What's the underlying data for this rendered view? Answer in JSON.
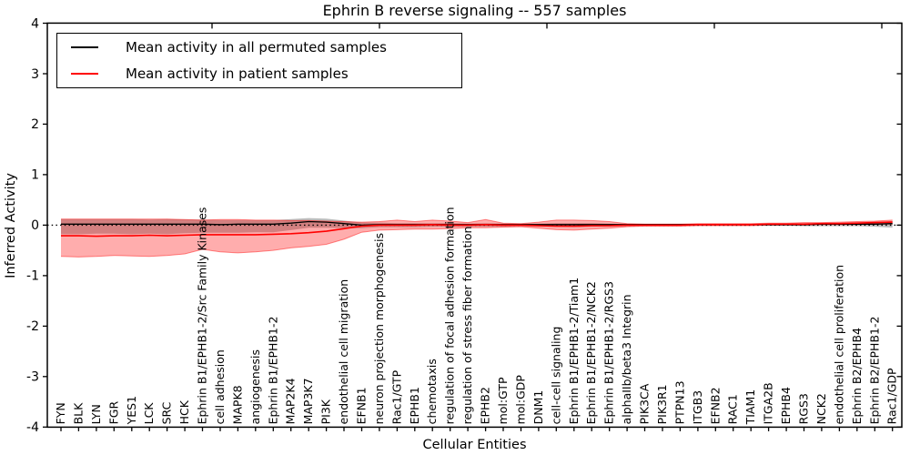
{
  "title": "Ephrin B reverse signaling -- 557 samples",
  "legend": {
    "entries": [
      {
        "label": "Mean activity in all permuted samples",
        "color": "#000000"
      },
      {
        "label": "Mean activity in patient samples",
        "color": "#ff0000"
      }
    ]
  },
  "colors": {
    "permuted_line": "#000000",
    "permuted_band": "rgba(0,0,0,0.26)",
    "patient_line": "#ff0000",
    "patient_band": "rgba(255,0,0,0.32)",
    "zero_line": "#000000"
  },
  "chart_data": {
    "type": "line",
    "title": "Ephrin B reverse signaling -- 557 samples",
    "xlabel": "Cellular Entities",
    "ylabel": "Inferred Activity",
    "ylim": [
      -4,
      4
    ],
    "yticks": [
      -4,
      -3,
      -2,
      -1,
      0,
      1,
      2,
      3,
      4
    ],
    "grid": false,
    "legend_position": "upper left",
    "zero_line": {
      "y": 0,
      "style": "dotted",
      "color": "#000000"
    },
    "categories": [
      "FYN",
      "BLK",
      "LYN",
      "FGR",
      "YES1",
      "LCK",
      "SRC",
      "HCK",
      "Ephrin B1/EPHB1-2/Src Family Kinases",
      "cell adhesion",
      "MAPK8",
      "angiogenesis",
      "Ephrin B1/EPHB1-2",
      "MAP2K4",
      "MAP3K7",
      "PI3K",
      "endothelial cell migration",
      "EFNB1",
      "neuron projection morphogenesis",
      "Rac1/GTP",
      "EPHB1",
      "chemotaxis",
      "regulation of focal adhesion formation",
      "regulation of stress fiber formation",
      "EPHB2",
      "mol:GTP",
      "mol:GDP",
      "DNM1",
      "cell-cell signaling",
      "Ephrin B1/EPHB1-2/Tiam1",
      "Ephrin B1/EPHB1-2/NCK2",
      "Ephrin B1/EPHB1-2/RGS3",
      "alphaIIb/beta3 Integrin",
      "PIK3CA",
      "PIK3R1",
      "PTPN13",
      "ITGB3",
      "EFNB2",
      "RAC1",
      "TIAM1",
      "ITGA2B",
      "EPHB4",
      "RGS3",
      "NCK2",
      "endothelial cell proliferation",
      "Ephrin B2/EPHB4",
      "Ephrin B2/EPHB1-2",
      "Rac1/GDP"
    ],
    "series": [
      {
        "name": "Mean activity in all permuted samples",
        "color": "#000000",
        "values": [
          0.02,
          0.02,
          0.02,
          0.02,
          0.02,
          0.02,
          0.02,
          0.02,
          0.02,
          0.01,
          0.02,
          0.02,
          0.02,
          0.04,
          0.07,
          0.06,
          0.03,
          0.0,
          0.01,
          0.01,
          0.01,
          0.01,
          0.01,
          0.01,
          0.01,
          0.01,
          0.01,
          0.01,
          0.01,
          0.01,
          0.01,
          0.01,
          0.01,
          0.01,
          0.01,
          0.01,
          0.01,
          0.01,
          0.01,
          0.01,
          0.01,
          0.01,
          0.01,
          0.02,
          0.02,
          0.02,
          0.02,
          0.03
        ],
        "band_hi": [
          0.12,
          0.12,
          0.12,
          0.12,
          0.12,
          0.11,
          0.12,
          0.11,
          0.11,
          0.1,
          0.1,
          0.1,
          0.1,
          0.12,
          0.14,
          0.13,
          0.09,
          0.05,
          0.05,
          0.04,
          0.04,
          0.04,
          0.04,
          0.03,
          0.04,
          0.03,
          0.03,
          0.03,
          0.04,
          0.04,
          0.04,
          0.03,
          0.02,
          0.02,
          0.02,
          0.02,
          0.02,
          0.02,
          0.02,
          0.02,
          0.03,
          0.03,
          0.03,
          0.03,
          0.04,
          0.04,
          0.05,
          0.08
        ],
        "band_lo": [
          -0.18,
          -0.18,
          -0.17,
          -0.17,
          -0.18,
          -0.17,
          -0.18,
          -0.16,
          -0.15,
          -0.15,
          -0.15,
          -0.14,
          -0.14,
          -0.1,
          -0.05,
          -0.05,
          -0.06,
          -0.06,
          -0.04,
          -0.04,
          -0.04,
          -0.03,
          -0.03,
          -0.03,
          -0.03,
          -0.03,
          -0.02,
          -0.03,
          -0.03,
          -0.04,
          -0.03,
          -0.03,
          -0.02,
          -0.01,
          -0.01,
          -0.01,
          -0.01,
          -0.01,
          -0.01,
          -0.01,
          -0.01,
          -0.01,
          -0.02,
          -0.02,
          -0.02,
          -0.02,
          -0.03,
          -0.05
        ]
      },
      {
        "name": "Mean activity in patient samples",
        "color": "#ff0000",
        "values": [
          -0.21,
          -0.21,
          -0.22,
          -0.21,
          -0.21,
          -0.2,
          -0.21,
          -0.2,
          -0.19,
          -0.19,
          -0.19,
          -0.19,
          -0.18,
          -0.17,
          -0.15,
          -0.12,
          -0.07,
          -0.02,
          0.0,
          0.0,
          0.0,
          0.01,
          0.0,
          0.0,
          0.01,
          0.0,
          0.0,
          -0.01,
          -0.02,
          -0.02,
          -0.01,
          -0.01,
          0.0,
          0.0,
          0.0,
          0.0,
          0.01,
          0.01,
          0.01,
          0.01,
          0.02,
          0.02,
          0.02,
          0.03,
          0.03,
          0.04,
          0.05,
          0.06
        ],
        "band_hi": [
          0.12,
          0.12,
          0.12,
          0.12,
          0.12,
          0.12,
          0.12,
          0.11,
          0.1,
          0.11,
          0.11,
          0.1,
          0.1,
          0.09,
          0.09,
          0.08,
          0.07,
          0.06,
          0.07,
          0.1,
          0.07,
          0.1,
          0.08,
          0.05,
          0.11,
          0.04,
          0.03,
          0.06,
          0.1,
          0.1,
          0.09,
          0.07,
          0.03,
          0.02,
          0.02,
          0.02,
          0.03,
          0.03,
          0.03,
          0.03,
          0.04,
          0.04,
          0.05,
          0.05,
          0.06,
          0.07,
          0.08,
          0.1
        ],
        "band_lo": [
          -0.62,
          -0.63,
          -0.62,
          -0.6,
          -0.61,
          -0.62,
          -0.6,
          -0.57,
          -0.48,
          -0.53,
          -0.55,
          -0.53,
          -0.5,
          -0.45,
          -0.42,
          -0.38,
          -0.28,
          -0.14,
          -0.1,
          -0.09,
          -0.08,
          -0.08,
          -0.07,
          -0.05,
          -0.05,
          -0.04,
          -0.03,
          -0.06,
          -0.09,
          -0.1,
          -0.08,
          -0.06,
          -0.03,
          -0.02,
          -0.02,
          -0.02,
          -0.01,
          -0.01,
          -0.01,
          -0.01,
          0.0,
          0.0,
          0.0,
          0.01,
          0.01,
          0.01,
          0.02,
          0.02
        ]
      }
    ]
  }
}
